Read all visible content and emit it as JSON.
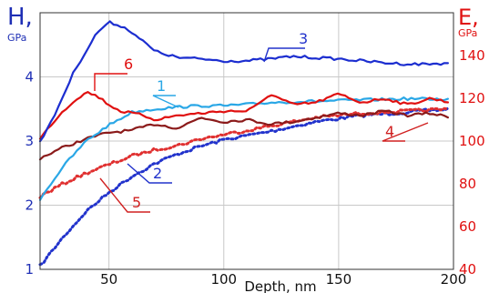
{
  "chart_data": {
    "type": "line",
    "title": "",
    "xlabel": "Depth, nm",
    "ylabel_left": "H,",
    "ylabel_left_unit": "GPa",
    "ylabel_right": "E,",
    "ylabel_right_unit": "GPa",
    "xlim": [
      20,
      200
    ],
    "ylim_left": [
      1,
      5
    ],
    "ylim_right": [
      40,
      160
    ],
    "x_ticks": [
      50,
      100,
      150,
      200
    ],
    "y_left_ticks": [
      1,
      2,
      3,
      4
    ],
    "y_right_ticks": [
      40,
      60,
      80,
      100,
      120,
      140
    ],
    "grid": "both",
    "legend": "none",
    "series": [
      {
        "name": "1",
        "axis": "left",
        "style": "solid",
        "color": "#2aa7e6",
        "points": [
          [
            20,
            2.1
          ],
          [
            30,
            2.6
          ],
          [
            40,
            3.0
          ],
          [
            50,
            3.25
          ],
          [
            60,
            3.45
          ],
          [
            70,
            3.5
          ],
          [
            80,
            3.53
          ],
          [
            90,
            3.55
          ],
          [
            100,
            3.55
          ],
          [
            110,
            3.57
          ],
          [
            120,
            3.6
          ],
          [
            140,
            3.62
          ],
          [
            160,
            3.64
          ],
          [
            180,
            3.66
          ],
          [
            199,
            3.65
          ]
        ]
      },
      {
        "name": "2",
        "axis": "left",
        "style": "dotted",
        "color": "#2233cc",
        "points": [
          [
            20,
            1.05
          ],
          [
            30,
            1.5
          ],
          [
            40,
            1.9
          ],
          [
            50,
            2.2
          ],
          [
            60,
            2.45
          ],
          [
            70,
            2.65
          ],
          [
            80,
            2.8
          ],
          [
            90,
            2.92
          ],
          [
            100,
            3.02
          ],
          [
            120,
            3.15
          ],
          [
            140,
            3.3
          ],
          [
            160,
            3.4
          ],
          [
            180,
            3.45
          ],
          [
            199,
            3.5
          ]
        ]
      },
      {
        "name": "3",
        "axis": "left",
        "style": "solid",
        "color": "#1c2ed0",
        "points": [
          [
            20,
            3.0
          ],
          [
            25,
            3.3
          ],
          [
            30,
            3.7
          ],
          [
            35,
            4.1
          ],
          [
            40,
            4.4
          ],
          [
            45,
            4.7
          ],
          [
            50,
            4.85
          ],
          [
            55,
            4.8
          ],
          [
            60,
            4.7
          ],
          [
            65,
            4.55
          ],
          [
            70,
            4.4
          ],
          [
            80,
            4.3
          ],
          [
            90,
            4.28
          ],
          [
            100,
            4.25
          ],
          [
            110,
            4.25
          ],
          [
            120,
            4.28
          ],
          [
            130,
            4.32
          ],
          [
            140,
            4.3
          ],
          [
            150,
            4.28
          ],
          [
            160,
            4.25
          ],
          [
            170,
            4.22
          ],
          [
            180,
            4.2
          ],
          [
            190,
            4.2
          ],
          [
            199,
            4.22
          ]
        ]
      },
      {
        "name": "4",
        "axis": "right",
        "style": "solid",
        "color": "#8b1a1a",
        "points": [
          [
            20,
            92
          ],
          [
            30,
            97
          ],
          [
            40,
            101
          ],
          [
            50,
            104
          ],
          [
            60,
            105
          ],
          [
            70,
            108
          ],
          [
            80,
            106
          ],
          [
            90,
            111
          ],
          [
            100,
            109
          ],
          [
            110,
            110
          ],
          [
            120,
            108
          ],
          [
            130,
            109
          ],
          [
            140,
            111
          ],
          [
            150,
            113
          ],
          [
            160,
            112
          ],
          [
            170,
            114
          ],
          [
            180,
            112
          ],
          [
            190,
            113
          ],
          [
            199,
            111
          ]
        ]
      },
      {
        "name": "5",
        "axis": "right",
        "style": "dotted",
        "color": "#e03030",
        "points": [
          [
            20,
            74
          ],
          [
            30,
            80
          ],
          [
            40,
            85
          ],
          [
            50,
            89
          ],
          [
            60,
            93
          ],
          [
            70,
            96
          ],
          [
            80,
            98
          ],
          [
            90,
            101
          ],
          [
            100,
            103
          ],
          [
            110,
            105
          ],
          [
            120,
            107
          ],
          [
            140,
            111
          ],
          [
            160,
            113
          ],
          [
            180,
            114
          ],
          [
            199,
            115
          ]
        ]
      },
      {
        "name": "6",
        "axis": "right",
        "style": "solid",
        "color": "#e01010",
        "points": [
          [
            20,
            101
          ],
          [
            25,
            108
          ],
          [
            30,
            114
          ],
          [
            35,
            119
          ],
          [
            40,
            123
          ],
          [
            45,
            121
          ],
          [
            50,
            117
          ],
          [
            55,
            114
          ],
          [
            60,
            113
          ],
          [
            65,
            112
          ],
          [
            70,
            110
          ],
          [
            80,
            112
          ],
          [
            90,
            113
          ],
          [
            100,
            114
          ],
          [
            110,
            114
          ],
          [
            115,
            117
          ],
          [
            120,
            122
          ],
          [
            130,
            117
          ],
          [
            140,
            118
          ],
          [
            150,
            122
          ],
          [
            160,
            118
          ],
          [
            170,
            120
          ],
          [
            180,
            117
          ],
          [
            190,
            120
          ],
          [
            199,
            118
          ]
        ]
      }
    ],
    "annotations": [
      {
        "text": "1",
        "series": "1",
        "color": "#2aa7e6"
      },
      {
        "text": "2",
        "series": "2",
        "color": "#2233cc"
      },
      {
        "text": "3",
        "series": "3",
        "color": "#2233cc"
      },
      {
        "text": "4",
        "series": "4",
        "color": "#d02020"
      },
      {
        "text": "5",
        "series": "5",
        "color": "#d02020"
      },
      {
        "text": "6",
        "series": "6",
        "color": "#e01010"
      }
    ]
  }
}
